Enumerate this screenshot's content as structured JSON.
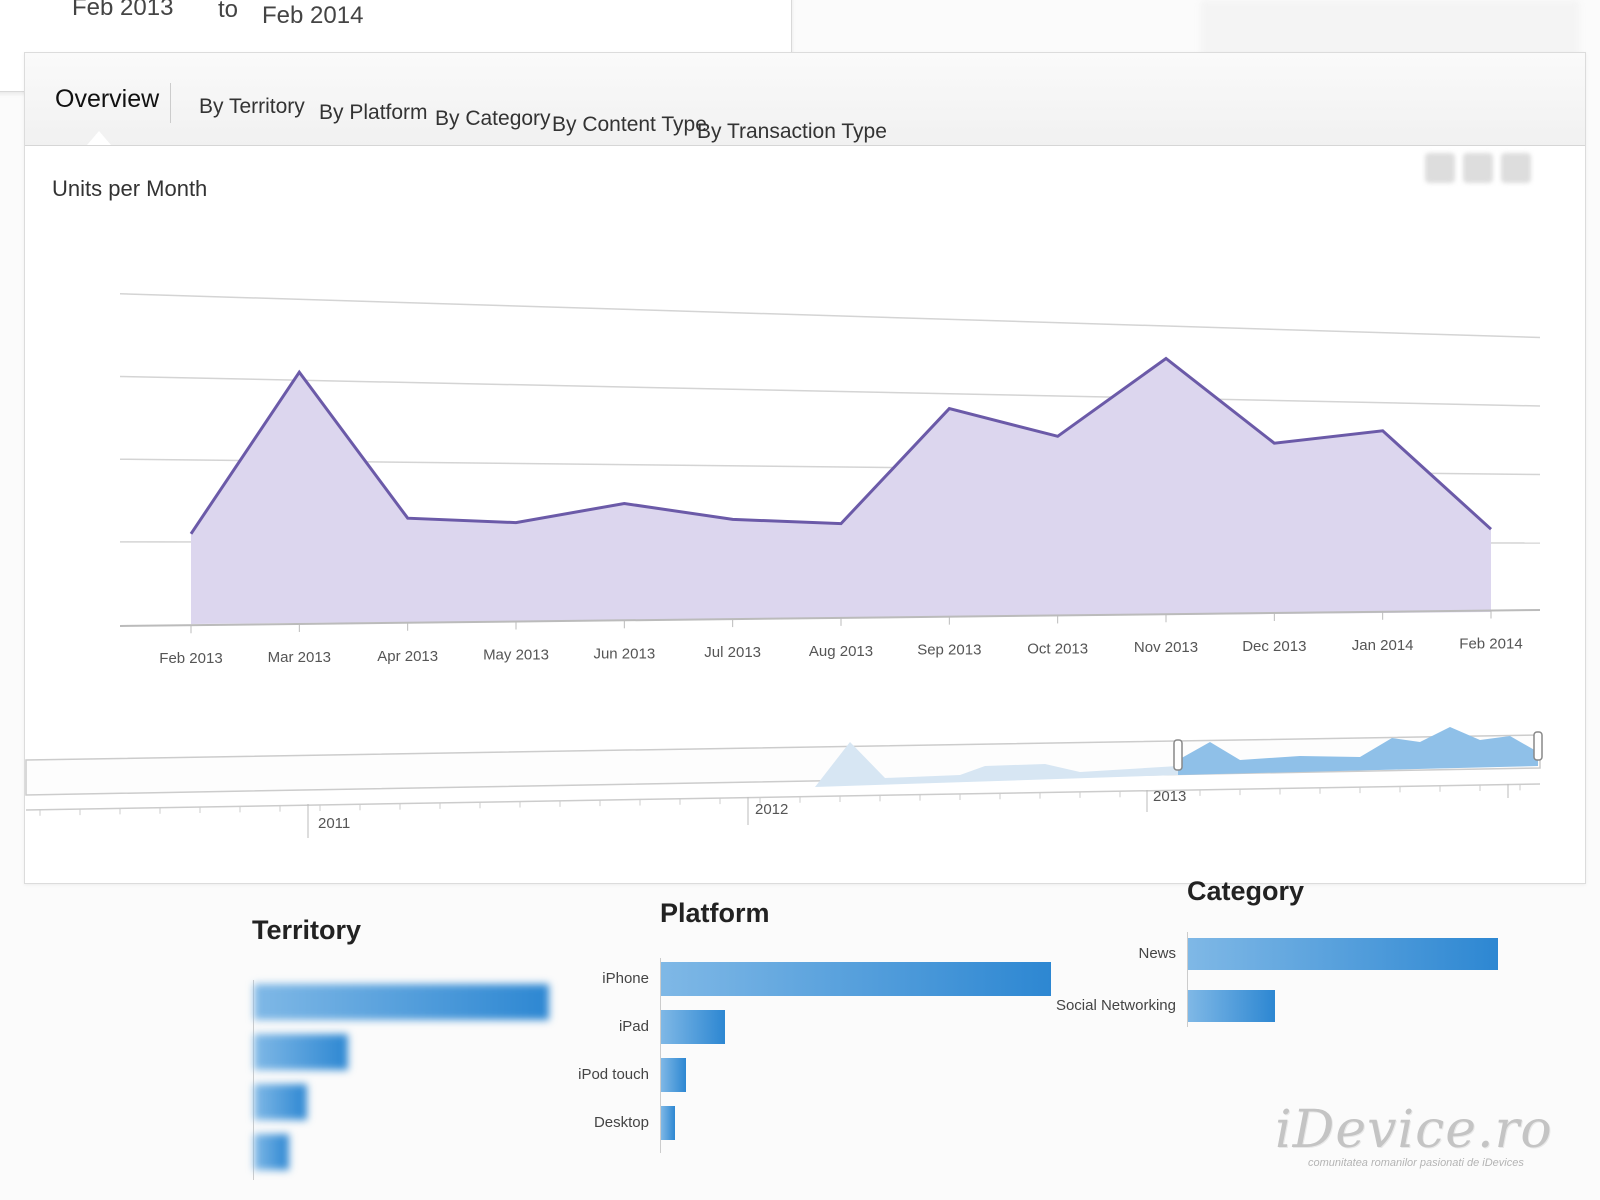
{
  "date_range": {
    "from": "Feb 2013",
    "separator": "to",
    "to": "Feb 2014"
  },
  "tabs": [
    {
      "label": "Overview",
      "active": true
    },
    {
      "label": "By Territory"
    },
    {
      "label": "By Platform"
    },
    {
      "label": "By Category"
    },
    {
      "label": "By Content Type"
    },
    {
      "label": "By Transaction Type"
    }
  ],
  "chart_data": {
    "type": "area",
    "title": "Units per Month",
    "categories": [
      "Feb 2013",
      "Mar 2013",
      "Apr 2013",
      "May 2013",
      "Jun 2013",
      "Jul 2013",
      "Aug 2013",
      "Sep 2013",
      "Oct 2013",
      "Nov 2013",
      "Dec 2013",
      "Jan 2014",
      "Feb 2014"
    ],
    "values": [
      1.1,
      3.1,
      1.3,
      1.25,
      1.5,
      1.3,
      1.25,
      2.8,
      2.45,
      3.55,
      2.4,
      2.6,
      1.2
    ],
    "ylim": [
      0,
      4
    ],
    "grid": true,
    "series_color": "#6b5aa8",
    "fill_color": "#dcd6ee"
  },
  "timeline": {
    "year_labels": [
      "2011",
      "2012",
      "2013"
    ]
  },
  "territory": {
    "title": "Territory",
    "bars": [
      {
        "label": "",
        "value": 1.0
      },
      {
        "label": "",
        "value": 0.32
      },
      {
        "label": "",
        "value": 0.18
      },
      {
        "label": "",
        "value": 0.12
      }
    ]
  },
  "platform": {
    "title": "Platform",
    "bars": [
      {
        "label": "iPhone",
        "value": 1.0
      },
      {
        "label": "iPad",
        "value": 0.165
      },
      {
        "label": "iPod touch",
        "value": 0.065
      },
      {
        "label": "Desktop",
        "value": 0.035
      }
    ]
  },
  "category": {
    "title": "Category",
    "bars": [
      {
        "label": "News",
        "value": 1.0
      },
      {
        "label": "Social Networking",
        "value": 0.28
      }
    ]
  },
  "watermark": {
    "brand": "iDevice.ro",
    "tagline": "comunitatea romanilor pasionati de iDevices"
  }
}
